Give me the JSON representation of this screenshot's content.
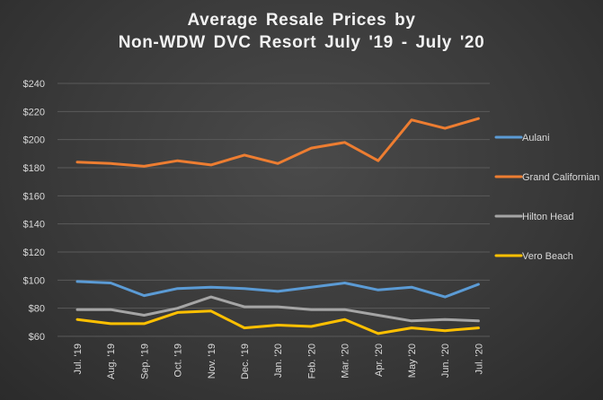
{
  "title_line1": "Average Resale Prices by",
  "title_line2": "Non-WDW  DVC Resort July '19 - July '20",
  "chart_data": {
    "type": "line",
    "title": "Average Resale Prices by Non-WDW DVC Resort July '19 - July '20",
    "categories": [
      "Jul. '19",
      "Aug. '19",
      "Sep. '19",
      "Oct. '19",
      "Nov. '19",
      "Dec. '19",
      "Jan. '20",
      "Feb. '20",
      "Mar. '20",
      "Apr. '20",
      "May '20",
      "Jun. '20",
      "Jul. '20"
    ],
    "y_tick_labels": [
      "$60",
      "$80",
      "$100",
      "$120",
      "$140",
      "$160",
      "$180",
      "$200",
      "$220",
      "$240"
    ],
    "ylim": [
      60,
      240
    ],
    "grid": true,
    "legend_position": "right",
    "series": [
      {
        "name": "Aulani",
        "color": "#5b9bd5",
        "values": [
          99,
          98,
          89,
          94,
          95,
          94,
          92,
          95,
          98,
          93,
          95,
          88,
          97
        ]
      },
      {
        "name": "Grand Californian",
        "color": "#ed7d31",
        "values": [
          184,
          183,
          181,
          185,
          182,
          189,
          183,
          194,
          198,
          185,
          214,
          208,
          215
        ]
      },
      {
        "name": "Hilton Head",
        "color": "#a5a5a5",
        "values": [
          79,
          79,
          75,
          80,
          88,
          81,
          81,
          79,
          79,
          75,
          71,
          72,
          71
        ]
      },
      {
        "name": "Vero Beach",
        "color": "#ffc000",
        "values": [
          72,
          69,
          69,
          77,
          78,
          66,
          68,
          67,
          72,
          62,
          66,
          64,
          66
        ]
      }
    ]
  }
}
